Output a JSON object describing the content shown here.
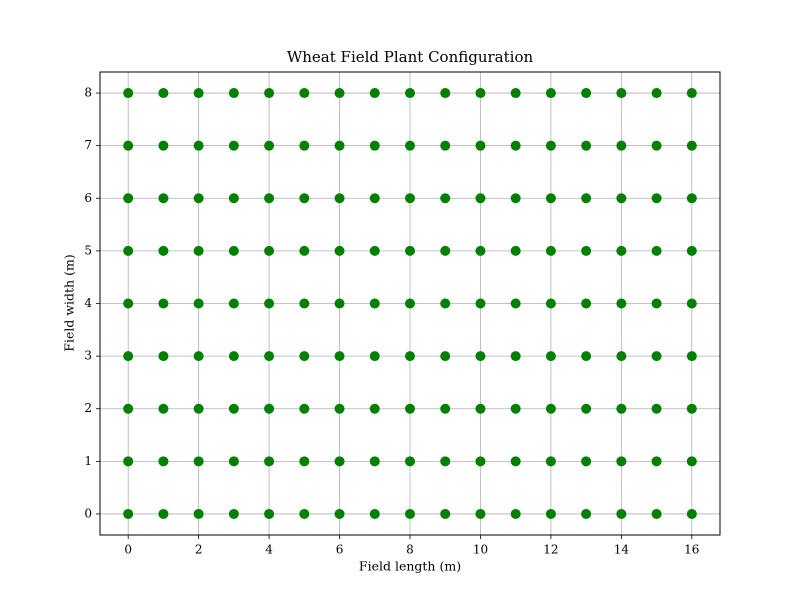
{
  "chart_data": {
    "type": "scatter",
    "title": "Wheat Field Plant Configuration",
    "x_label": "Field length (m)",
    "y_label": "Field width (m)",
    "color": "#008000",
    "grid": true,
    "xlim": [
      -0.8,
      16.8
    ],
    "ylim": [
      -0.4,
      8.4
    ],
    "xticks": [
      0,
      2,
      4,
      6,
      8,
      10,
      12,
      14,
      16
    ],
    "yticks": [
      0,
      1,
      2,
      3,
      4,
      5,
      6,
      7,
      8
    ],
    "x": [
      0,
      0,
      0,
      0,
      0,
      0,
      0,
      0,
      0,
      1,
      1,
      1,
      1,
      1,
      1,
      1,
      1,
      1,
      2,
      2,
      2,
      2,
      2,
      2,
      2,
      2,
      2,
      3,
      3,
      3,
      3,
      3,
      3,
      3,
      3,
      3,
      4,
      4,
      4,
      4,
      4,
      4,
      4,
      4,
      4,
      5,
      5,
      5,
      5,
      5,
      5,
      5,
      5,
      5,
      6,
      6,
      6,
      6,
      6,
      6,
      6,
      6,
      6,
      7,
      7,
      7,
      7,
      7,
      7,
      7,
      7,
      7,
      8,
      8,
      8,
      8,
      8,
      8,
      8,
      8,
      8,
      9,
      9,
      9,
      9,
      9,
      9,
      9,
      9,
      9,
      10,
      10,
      10,
      10,
      10,
      10,
      10,
      10,
      10,
      11,
      11,
      11,
      11,
      11,
      11,
      11,
      11,
      11,
      12,
      12,
      12,
      12,
      12,
      12,
      12,
      12,
      12,
      13,
      13,
      13,
      13,
      13,
      13,
      13,
      13,
      13,
      14,
      14,
      14,
      14,
      14,
      14,
      14,
      14,
      14,
      15,
      15,
      15,
      15,
      15,
      15,
      15,
      15,
      15,
      16,
      16,
      16,
      16,
      16,
      16,
      16,
      16,
      16
    ],
    "values": [
      0,
      1,
      2,
      3,
      4,
      5,
      6,
      7,
      8,
      0,
      1,
      2,
      3,
      4,
      5,
      6,
      7,
      8,
      0,
      1,
      2,
      3,
      4,
      5,
      6,
      7,
      8,
      0,
      1,
      2,
      3,
      4,
      5,
      6,
      7,
      8,
      0,
      1,
      2,
      3,
      4,
      5,
      6,
      7,
      8,
      0,
      1,
      2,
      3,
      4,
      5,
      6,
      7,
      8,
      0,
      1,
      2,
      3,
      4,
      5,
      6,
      7,
      8,
      0,
      1,
      2,
      3,
      4,
      5,
      6,
      7,
      8,
      0,
      1,
      2,
      3,
      4,
      5,
      6,
      7,
      8,
      0,
      1,
      2,
      3,
      4,
      5,
      6,
      7,
      8,
      0,
      1,
      2,
      3,
      4,
      5,
      6,
      7,
      8,
      0,
      1,
      2,
      3,
      4,
      5,
      6,
      7,
      8,
      0,
      1,
      2,
      3,
      4,
      5,
      6,
      7,
      8,
      0,
      1,
      2,
      3,
      4,
      5,
      6,
      7,
      8,
      0,
      1,
      2,
      3,
      4,
      5,
      6,
      7,
      8,
      0,
      1,
      2,
      3,
      4,
      5,
      6,
      7,
      8,
      0,
      1,
      2,
      3,
      4,
      5,
      6,
      7,
      8
    ]
  }
}
